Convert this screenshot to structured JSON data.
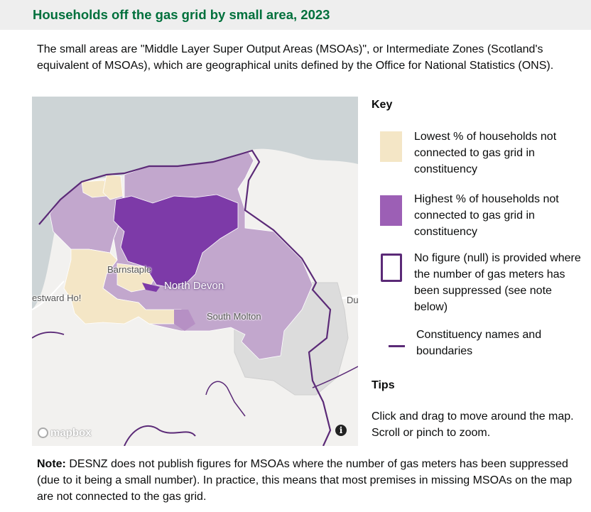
{
  "header": {
    "title": "Households off the gas grid by small area, 2023"
  },
  "intro": "The small areas are \"Middle Layer Super Output Areas (MSOAs)\", or Intermediate Zones (Scotland's equivalent of MSOAs), which are geographical units defined by the Office for National Statistics (ONS).",
  "map": {
    "labels": {
      "barnstaple": "Barnstaple",
      "north_devon": "North Devon",
      "south_molton": "South Molton",
      "westward_ho": "estward Ho!",
      "du": "Du"
    },
    "attribution": "mapbox",
    "info": "i",
    "colors": {
      "lowest": "#f4e6c6",
      "highest": "#9c5fb5",
      "mid": "#b690c4",
      "null": "#dcdcdc",
      "boundary": "#5b2a77",
      "sea": "#cdd4d6"
    }
  },
  "key": {
    "heading": "Key",
    "items": [
      {
        "label": "Lowest % of households not connected to gas grid in constituency"
      },
      {
        "label": "Highest % of households not connected to gas grid in constituency"
      },
      {
        "label": "No figure (null) is provided where the number of gas meters has been suppressed (see note below)"
      },
      {
        "label": "Constituency names and boundaries"
      }
    ]
  },
  "tips": {
    "heading": "Tips",
    "text": "Click and drag to move around the map. Scroll or pinch to zoom."
  },
  "note": {
    "label": "Note:",
    "text": " DESNZ does not publish figures for MSOAs where the number of gas meters has been suppressed (due to it being a small number). In practice, this means that most premises in missing MSOAs on the map are not connected to the gas grid."
  }
}
